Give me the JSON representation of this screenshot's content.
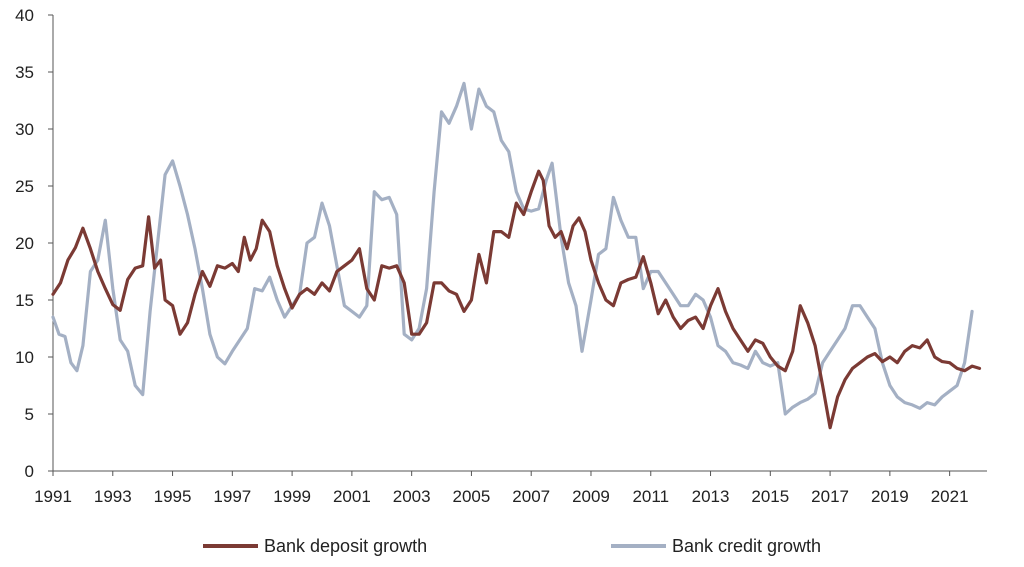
{
  "chart_data": {
    "type": "line",
    "title": "",
    "xlabel": "",
    "ylabel": "",
    "xlim": [
      1991,
      2022.25
    ],
    "ylim": [
      0,
      40
    ],
    "yticks": [
      0,
      5,
      10,
      15,
      20,
      25,
      30,
      35,
      40
    ],
    "xticks": [
      1991,
      1993,
      1995,
      1997,
      1999,
      2001,
      2003,
      2005,
      2007,
      2009,
      2011,
      2013,
      2015,
      2017,
      2019,
      2021
    ],
    "ytick_labels": [
      "0",
      "5",
      "10",
      "15",
      "20",
      "25",
      "30",
      "35",
      "40"
    ],
    "xtick_labels": [
      "1991",
      "1993",
      "1995",
      "1997",
      "1999",
      "2001",
      "2003",
      "2005",
      "2007",
      "2009",
      "2011",
      "2013",
      "2015",
      "2017",
      "2019",
      "2021"
    ],
    "grid": false,
    "legend_position": "bottom",
    "series": [
      {
        "name": "Bank deposit growth",
        "color": "#7b3a34",
        "points": [
          [
            1991.0,
            15.5
          ],
          [
            1991.25,
            16.5
          ],
          [
            1991.5,
            18.5
          ],
          [
            1991.75,
            19.6
          ],
          [
            1992.0,
            21.3
          ],
          [
            1992.25,
            19.5
          ],
          [
            1992.5,
            17.5
          ],
          [
            1992.75,
            16.0
          ],
          [
            1993.0,
            14.6
          ],
          [
            1993.25,
            14.1
          ],
          [
            1993.5,
            16.8
          ],
          [
            1993.75,
            17.8
          ],
          [
            1994.0,
            18.0
          ],
          [
            1994.2,
            22.3
          ],
          [
            1994.4,
            17.8
          ],
          [
            1994.6,
            18.5
          ],
          [
            1994.75,
            15.0
          ],
          [
            1995.0,
            14.5
          ],
          [
            1995.25,
            12.0
          ],
          [
            1995.5,
            13.0
          ],
          [
            1995.75,
            15.5
          ],
          [
            1996.0,
            17.5
          ],
          [
            1996.25,
            16.2
          ],
          [
            1996.5,
            18.0
          ],
          [
            1996.75,
            17.8
          ],
          [
            1997.0,
            18.2
          ],
          [
            1997.2,
            17.5
          ],
          [
            1997.4,
            20.5
          ],
          [
            1997.6,
            18.5
          ],
          [
            1997.8,
            19.5
          ],
          [
            1998.0,
            22.0
          ],
          [
            1998.25,
            21.0
          ],
          [
            1998.5,
            18.0
          ],
          [
            1998.75,
            16.0
          ],
          [
            1999.0,
            14.3
          ],
          [
            1999.25,
            15.5
          ],
          [
            1999.5,
            16.0
          ],
          [
            1999.75,
            15.5
          ],
          [
            2000.0,
            16.5
          ],
          [
            2000.25,
            15.8
          ],
          [
            2000.5,
            17.5
          ],
          [
            2000.75,
            18.0
          ],
          [
            2001.0,
            18.5
          ],
          [
            2001.25,
            19.5
          ],
          [
            2001.5,
            16.0
          ],
          [
            2001.75,
            15.0
          ],
          [
            2002.0,
            18.0
          ],
          [
            2002.25,
            17.8
          ],
          [
            2002.5,
            18.0
          ],
          [
            2002.75,
            16.5
          ],
          [
            2003.0,
            12.0
          ],
          [
            2003.25,
            12.0
          ],
          [
            2003.5,
            13.0
          ],
          [
            2003.75,
            16.5
          ],
          [
            2004.0,
            16.5
          ],
          [
            2004.25,
            15.8
          ],
          [
            2004.5,
            15.5
          ],
          [
            2004.75,
            14.0
          ],
          [
            2005.0,
            15.0
          ],
          [
            2005.25,
            19.0
          ],
          [
            2005.5,
            16.5
          ],
          [
            2005.75,
            21.0
          ],
          [
            2006.0,
            21.0
          ],
          [
            2006.25,
            20.5
          ],
          [
            2006.5,
            23.5
          ],
          [
            2006.75,
            22.5
          ],
          [
            2007.0,
            24.5
          ],
          [
            2007.25,
            26.3
          ],
          [
            2007.4,
            25.5
          ],
          [
            2007.6,
            21.5
          ],
          [
            2007.8,
            20.5
          ],
          [
            2008.0,
            21.0
          ],
          [
            2008.2,
            19.5
          ],
          [
            2008.4,
            21.5
          ],
          [
            2008.6,
            22.2
          ],
          [
            2008.8,
            21.0
          ],
          [
            2009.0,
            18.5
          ],
          [
            2009.25,
            16.5
          ],
          [
            2009.5,
            15.0
          ],
          [
            2009.75,
            14.5
          ],
          [
            2010.0,
            16.5
          ],
          [
            2010.25,
            16.8
          ],
          [
            2010.5,
            17.0
          ],
          [
            2010.75,
            18.8
          ],
          [
            2011.0,
            16.5
          ],
          [
            2011.25,
            13.8
          ],
          [
            2011.5,
            15.0
          ],
          [
            2011.75,
            13.5
          ],
          [
            2012.0,
            12.5
          ],
          [
            2012.25,
            13.2
          ],
          [
            2012.5,
            13.5
          ],
          [
            2012.75,
            12.5
          ],
          [
            2013.0,
            14.5
          ],
          [
            2013.25,
            16.0
          ],
          [
            2013.5,
            14.0
          ],
          [
            2013.75,
            12.5
          ],
          [
            2014.0,
            11.5
          ],
          [
            2014.25,
            10.5
          ],
          [
            2014.5,
            11.5
          ],
          [
            2014.75,
            11.2
          ],
          [
            2015.0,
            10.0
          ],
          [
            2015.25,
            9.2
          ],
          [
            2015.5,
            8.8
          ],
          [
            2015.75,
            10.5
          ],
          [
            2016.0,
            14.5
          ],
          [
            2016.25,
            13.0
          ],
          [
            2016.5,
            11.0
          ],
          [
            2016.75,
            7.5
          ],
          [
            2017.0,
            3.8
          ],
          [
            2017.25,
            6.5
          ],
          [
            2017.5,
            8.0
          ],
          [
            2017.75,
            9.0
          ],
          [
            2018.0,
            9.5
          ],
          [
            2018.25,
            10.0
          ],
          [
            2018.5,
            10.3
          ],
          [
            2018.75,
            9.6
          ],
          [
            2019.0,
            10.0
          ],
          [
            2019.25,
            9.5
          ],
          [
            2019.5,
            10.5
          ],
          [
            2019.75,
            11.0
          ],
          [
            2020.0,
            10.8
          ],
          [
            2020.25,
            11.5
          ],
          [
            2020.5,
            10.0
          ],
          [
            2020.75,
            9.6
          ],
          [
            2021.0,
            9.5
          ],
          [
            2021.25,
            9.0
          ],
          [
            2021.5,
            8.8
          ],
          [
            2021.75,
            9.2
          ],
          [
            2022.0,
            9.0
          ]
        ]
      },
      {
        "name": "Bank credit growth",
        "color": "#a4b0c4",
        "points": [
          [
            1991.0,
            13.5
          ],
          [
            1991.2,
            12.0
          ],
          [
            1991.4,
            11.8
          ],
          [
            1991.6,
            9.5
          ],
          [
            1991.8,
            8.8
          ],
          [
            1992.0,
            11.0
          ],
          [
            1992.25,
            17.5
          ],
          [
            1992.5,
            18.5
          ],
          [
            1992.75,
            22.0
          ],
          [
            1993.0,
            16.0
          ],
          [
            1993.25,
            11.5
          ],
          [
            1993.5,
            10.5
          ],
          [
            1993.75,
            7.5
          ],
          [
            1994.0,
            6.7
          ],
          [
            1994.25,
            14.0
          ],
          [
            1994.5,
            20.0
          ],
          [
            1994.75,
            26.0
          ],
          [
            1995.0,
            27.2
          ],
          [
            1995.25,
            25.0
          ],
          [
            1995.5,
            22.5
          ],
          [
            1995.75,
            19.5
          ],
          [
            1996.0,
            16.0
          ],
          [
            1996.25,
            12.0
          ],
          [
            1996.5,
            10.0
          ],
          [
            1996.75,
            9.4
          ],
          [
            1997.0,
            10.5
          ],
          [
            1997.25,
            11.5
          ],
          [
            1997.5,
            12.5
          ],
          [
            1997.75,
            16.0
          ],
          [
            1998.0,
            15.8
          ],
          [
            1998.25,
            17.0
          ],
          [
            1998.5,
            15.0
          ],
          [
            1998.75,
            13.5
          ],
          [
            1999.0,
            14.5
          ],
          [
            1999.25,
            15.5
          ],
          [
            1999.5,
            20.0
          ],
          [
            1999.75,
            20.5
          ],
          [
            2000.0,
            23.5
          ],
          [
            2000.25,
            21.5
          ],
          [
            2000.5,
            18.0
          ],
          [
            2000.75,
            14.5
          ],
          [
            2001.0,
            14.0
          ],
          [
            2001.25,
            13.5
          ],
          [
            2001.5,
            14.5
          ],
          [
            2001.75,
            24.5
          ],
          [
            2002.0,
            23.8
          ],
          [
            2002.25,
            24.0
          ],
          [
            2002.5,
            22.5
          ],
          [
            2002.75,
            12.0
          ],
          [
            2003.0,
            11.5
          ],
          [
            2003.25,
            12.5
          ],
          [
            2003.5,
            16.0
          ],
          [
            2003.75,
            24.5
          ],
          [
            2004.0,
            31.5
          ],
          [
            2004.25,
            30.5
          ],
          [
            2004.5,
            32.0
          ],
          [
            2004.75,
            34.0
          ],
          [
            2005.0,
            30.0
          ],
          [
            2005.25,
            33.5
          ],
          [
            2005.5,
            32.0
          ],
          [
            2005.75,
            31.5
          ],
          [
            2006.0,
            29.0
          ],
          [
            2006.25,
            28.0
          ],
          [
            2006.5,
            24.5
          ],
          [
            2006.75,
            23.0
          ],
          [
            2007.0,
            22.8
          ],
          [
            2007.25,
            23.0
          ],
          [
            2007.5,
            25.5
          ],
          [
            2007.7,
            27.0
          ],
          [
            2008.0,
            20.5
          ],
          [
            2008.25,
            16.5
          ],
          [
            2008.5,
            14.5
          ],
          [
            2008.7,
            10.5
          ],
          [
            2009.0,
            15.0
          ],
          [
            2009.25,
            19.0
          ],
          [
            2009.5,
            19.5
          ],
          [
            2009.75,
            24.0
          ],
          [
            2010.0,
            22.0
          ],
          [
            2010.25,
            20.5
          ],
          [
            2010.5,
            20.5
          ],
          [
            2010.75,
            16.0
          ],
          [
            2011.0,
            17.5
          ],
          [
            2011.25,
            17.5
          ],
          [
            2011.5,
            16.5
          ],
          [
            2011.75,
            15.5
          ],
          [
            2012.0,
            14.5
          ],
          [
            2012.25,
            14.5
          ],
          [
            2012.5,
            15.5
          ],
          [
            2012.75,
            15.0
          ],
          [
            2013.0,
            13.5
          ],
          [
            2013.25,
            11.0
          ],
          [
            2013.5,
            10.5
          ],
          [
            2013.75,
            9.5
          ],
          [
            2014.0,
            9.3
          ],
          [
            2014.25,
            9.0
          ],
          [
            2014.5,
            10.5
          ],
          [
            2014.75,
            9.5
          ],
          [
            2015.0,
            9.2
          ],
          [
            2015.25,
            9.5
          ],
          [
            2015.5,
            5.0
          ],
          [
            2015.75,
            5.6
          ],
          [
            2016.0,
            6.0
          ],
          [
            2016.25,
            6.3
          ],
          [
            2016.5,
            6.8
          ],
          [
            2016.75,
            9.5
          ],
          [
            2017.0,
            10.5
          ],
          [
            2017.25,
            11.5
          ],
          [
            2017.5,
            12.5
          ],
          [
            2017.75,
            14.5
          ],
          [
            2018.0,
            14.5
          ],
          [
            2018.25,
            13.5
          ],
          [
            2018.5,
            12.5
          ],
          [
            2018.75,
            9.5
          ],
          [
            2019.0,
            7.5
          ],
          [
            2019.25,
            6.5
          ],
          [
            2019.5,
            6.0
          ],
          [
            2019.75,
            5.8
          ],
          [
            2020.0,
            5.5
          ],
          [
            2020.25,
            6.0
          ],
          [
            2020.5,
            5.8
          ],
          [
            2020.75,
            6.5
          ],
          [
            2021.0,
            7.0
          ],
          [
            2021.25,
            7.5
          ],
          [
            2021.5,
            9.5
          ],
          [
            2021.75,
            14.0
          ]
        ]
      }
    ]
  }
}
